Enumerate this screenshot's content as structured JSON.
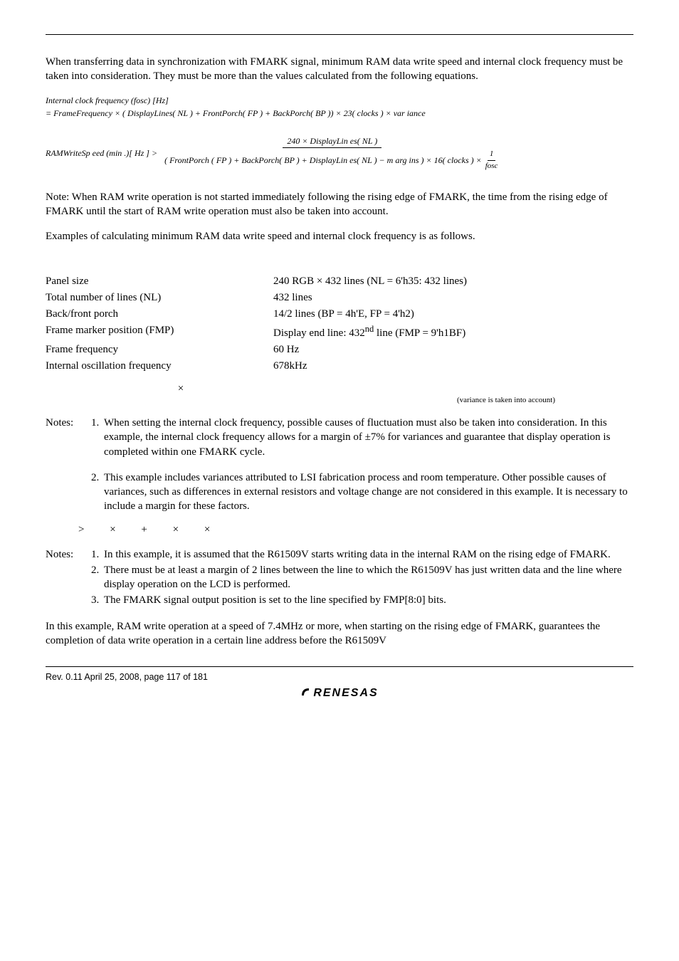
{
  "intro": "When transferring data in synchronization with FMARK signal, minimum RAM data write speed and internal clock frequency must be taken into consideration.  They must be more than the values calculated from the following equations.",
  "eq1": {
    "line1": "Internal clock frequency (fosc) [Hz]",
    "line2": "= FrameFrequency × ( DisplayLines( NL ) + FrontPorch( FP ) + BackPorch( BP )) × 23( clocks ) × var iance"
  },
  "eq2": {
    "lhs": "RAMWriteSp eed (min .)[ Hz ] >",
    "num": "240 × DisplayLin es( NL )",
    "den_main": "( FrontPorch ( FP ) + BackPorch( BP ) + DisplayLin es( NL ) − m arg ins ) × 16( clocks ) ×",
    "den_frac_num": "1",
    "den_frac_den": "fosc"
  },
  "note_para": "Note:     When RAM write operation is not started immediately following the rising edge of FMARK, the time from the rising edge of FMARK until the start of RAM write operation must also be taken into account.",
  "examples_intro": "Examples of calculating minimum RAM data write speed and internal clock frequency is as follows.",
  "params": [
    {
      "label": "Panel size",
      "value": "240 RGB × 432 lines (NL = 6'h35: 432 lines)"
    },
    {
      "label": "Total number of lines (NL)",
      "value": "432 lines"
    },
    {
      "label": "Back/front porch",
      "value": "14/2 lines (BP = 4h'E, FP = 4'h2)"
    },
    {
      "label": "Frame marker position (FMP)",
      "value_html": "Display end line: 432<sup>nd</sup> line (FMP = 9'h1BF)"
    },
    {
      "label": "Frame frequency",
      "value": "60 Hz"
    },
    {
      "label": "Internal oscillation frequency",
      "value": "678kHz"
    }
  ],
  "variance_caption": "(variance is taken into account)",
  "variance_sym": "×",
  "notesA": {
    "n1": "When setting the internal clock frequency, possible causes of fluctuation must also be taken into consideration.  In this example, the internal clock frequency allows for a margin of ±7% for variances and guarantee that display operation is completed within one FMARK cycle.",
    "n2": "This example includes variances attributed to LSI fabrication process and room temperature.  Other possible causes of variances, such as differences in external resistors and voltage change are not considered in this example.  It is necessary to include a margin for these factors."
  },
  "sym_row": "> × + × ×",
  "notesB": {
    "n1": "In this example, it is assumed that the R61509V starts writing data in the internal RAM on the rising edge of FMARK.",
    "n2": "There must be at least a margin of 2 lines between the line to which the R61509V has just written data and the line where display operation on the LCD is performed.",
    "n3": "The FMARK signal output position is set to the line specified by FMP[8:0] bits."
  },
  "closing": "In this example, RAM write operation at a speed of 7.4MHz or more, when starting on the rising edge of FMARK, guarantees the completion of data write operation in a certain line address before the R61509V",
  "footer": "Rev. 0.11 April 25, 2008, page 117 of 181",
  "logo": "RENESAS"
}
